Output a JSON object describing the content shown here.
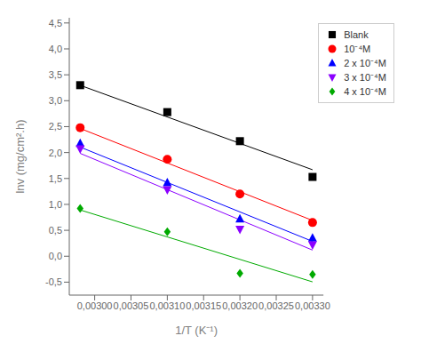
{
  "chart_data": {
    "type": "scatter",
    "x_label": "1/T (K⁻¹)",
    "y_label": "lnv (mg/cm².h)",
    "series": [
      {
        "name": "Blank",
        "color": "black",
        "marker": "square",
        "x": [
          0.00298,
          0.0031,
          0.0032,
          0.0033
        ],
        "values": [
          3.3,
          2.78,
          2.22,
          1.53
        ],
        "trendline": {
          "x": [
            0.00298,
            0.0033
          ],
          "values": [
            3.2975,
            1.6684
          ]
        }
      },
      {
        "name": "10⁻⁴M",
        "color": "red",
        "marker": "circle",
        "x": [
          0.00298,
          0.0031,
          0.0032,
          0.0033
        ],
        "values": [
          2.48,
          1.87,
          1.2,
          0.65
        ],
        "trendline": {
          "x": [
            0.00298,
            0.0033
          ],
          "values": [
            2.4654,
            0.6901
          ]
        }
      },
      {
        "name": "2 x 10⁻⁴M",
        "color": "blue",
        "marker": "triangle-up",
        "x": [
          0.00298,
          0.0031,
          0.0032,
          0.0033
        ],
        "values": [
          2.18,
          1.42,
          0.72,
          0.35
        ],
        "trendline": {
          "x": [
            0.00298,
            0.0033
          ],
          "values": [
            2.1056,
            0.2862
          ]
        }
      },
      {
        "name": "3 x 10⁻⁴M",
        "color": "#8B00FF",
        "marker": "triangle-down",
        "x": [
          0.00298,
          0.0031,
          0.0032,
          0.0033
        ],
        "values": [
          2.07,
          1.28,
          0.52,
          0.22
        ],
        "trendline": {
          "x": [
            0.00298,
            0.0033
          ],
          "values": [
            1.9847,
            0.1186
          ]
        }
      },
      {
        "name": "4 x 10⁻⁴M",
        "color": "#00AA00",
        "marker": "diamond",
        "x": [
          0.00298,
          0.0031,
          0.0032,
          0.0033
        ],
        "values": [
          0.92,
          0.47,
          -0.33,
          -0.35
        ],
        "trendline": {
          "x": [
            0.00298,
            0.0033
          ],
          "values": [
            0.8929,
            -0.4946
          ]
        }
      }
    ],
    "xlim": [
      0.002965,
      0.003315
    ],
    "ylim": [
      -0.75,
      4.6
    ],
    "xticks": [
      {
        "value": 0.003,
        "label": "0,00300"
      },
      {
        "value": 0.00305,
        "label": "0,00305"
      },
      {
        "value": 0.0031,
        "label": "0,00310"
      },
      {
        "value": 0.00315,
        "label": "0,00315"
      },
      {
        "value": 0.0032,
        "label": "0,00320"
      },
      {
        "value": 0.00325,
        "label": "0,00325"
      },
      {
        "value": 0.0033,
        "label": "0,00330"
      }
    ],
    "yticks": [
      {
        "value": -0.5,
        "label": "-0,5"
      },
      {
        "value": 0.0,
        "label": "0,0"
      },
      {
        "value": 0.5,
        "label": "0,5"
      },
      {
        "value": 1.0,
        "label": "1,0"
      },
      {
        "value": 1.5,
        "label": "1,5"
      },
      {
        "value": 2.0,
        "label": "2,0"
      },
      {
        "value": 2.5,
        "label": "2,5"
      },
      {
        "value": 3.0,
        "label": "3,0"
      },
      {
        "value": 3.5,
        "label": "3,5"
      },
      {
        "value": 4.0,
        "label": "4,0"
      },
      {
        "value": 4.5,
        "label": "4,5"
      }
    ],
    "legend": "upper right"
  }
}
